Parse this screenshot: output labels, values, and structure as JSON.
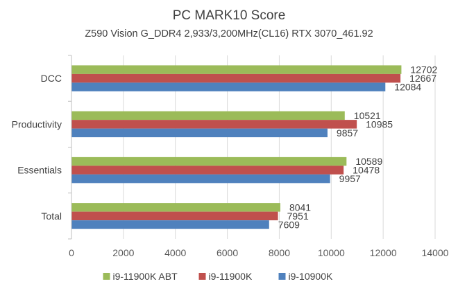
{
  "chart_data": {
    "type": "bar",
    "orientation": "horizontal",
    "title": "PC MARK10 Score",
    "subtitle": "Z590 Vision G_DDR4 2,933/3,200MHz(CL16) RTX 3070_461.92",
    "categories": [
      "DCC",
      "Productivity",
      "Essentials",
      "Total"
    ],
    "series": [
      {
        "name": "i9-11900K ABT",
        "color": "#9BBB59",
        "values": [
          12702,
          10521,
          10589,
          8041
        ]
      },
      {
        "name": "i9-11900K",
        "color": "#C0504D",
        "values": [
          12667,
          10985,
          10478,
          7951
        ]
      },
      {
        "name": "i9-10900K",
        "color": "#4F81BD",
        "values": [
          12084,
          9857,
          9957,
          7609
        ]
      }
    ],
    "xlim": [
      0,
      14000
    ],
    "xticks": [
      0,
      2000,
      4000,
      6000,
      8000,
      10000,
      12000,
      14000
    ],
    "xlabel": "",
    "ylabel": "",
    "grid": "vertical",
    "legend": "bottom"
  }
}
